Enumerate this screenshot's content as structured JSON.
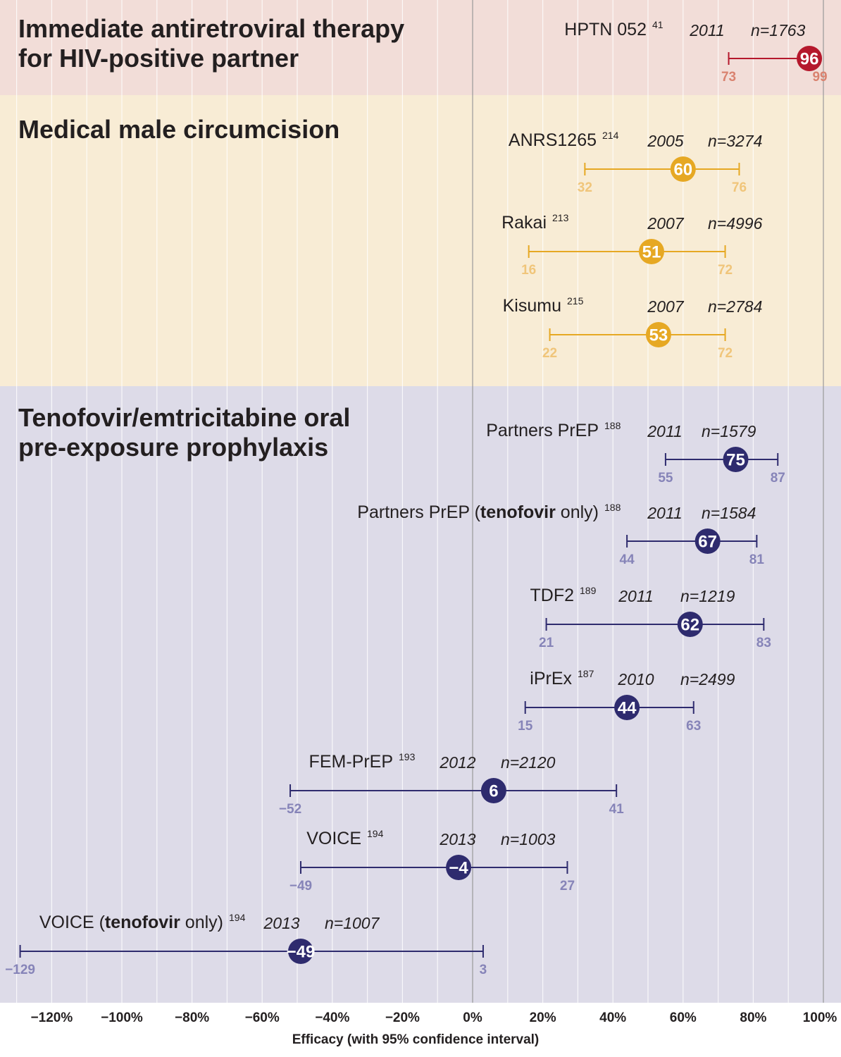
{
  "chart_data": {
    "type": "forest",
    "xlabel": "Efficacy (with 95% confidence interval)",
    "xlim": [
      -132,
      103
    ],
    "x_ticks": [
      {
        "value": -120,
        "label": "−120%"
      },
      {
        "value": -100,
        "label": "−100%"
      },
      {
        "value": -80,
        "label": "−80%"
      },
      {
        "value": -60,
        "label": "−60%"
      },
      {
        "value": -40,
        "label": "−40%"
      },
      {
        "value": -20,
        "label": "−20%"
      },
      {
        "value": 0,
        "label": "0%"
      },
      {
        "value": 20,
        "label": "20%"
      },
      {
        "value": 40,
        "label": "40%"
      },
      {
        "value": 60,
        "label": "60%"
      },
      {
        "value": 80,
        "label": "80%"
      },
      {
        "value": 100,
        "label": "100%"
      }
    ],
    "grid": true,
    "groups": [
      {
        "title_lines": [
          "Immediate antiretroviral therapy",
          "for HIV-positive partner"
        ],
        "color": "#b5182c",
        "band_color": "#f2ddd8",
        "ci_label_color": "#d9826f",
        "trials": [
          {
            "name_parts": [
              {
                "text": "HPTN 052",
                "bold": false
              }
            ],
            "ref": "41",
            "year": "2011",
            "n": "n=1763",
            "estimate": 96,
            "estimate_label": "96",
            "lower": 73,
            "lower_label": "73",
            "upper": 99,
            "upper_label": "99"
          }
        ]
      },
      {
        "title_lines": [
          "Medical male circumcision"
        ],
        "color": "#e6a823",
        "band_color": "#f8ecd5",
        "ci_label_color": "#f0c57a",
        "trials": [
          {
            "name_parts": [
              {
                "text": "ANRS1265",
                "bold": false
              }
            ],
            "ref": "214",
            "year": "2005",
            "n": "n=3274",
            "estimate": 60,
            "estimate_label": "60",
            "lower": 32,
            "lower_label": "32",
            "upper": 76,
            "upper_label": "76"
          },
          {
            "name_parts": [
              {
                "text": "Rakai",
                "bold": false
              }
            ],
            "ref": "213",
            "year": "2007",
            "n": "n=4996",
            "estimate": 51,
            "estimate_label": "51",
            "lower": 16,
            "lower_label": "16",
            "upper": 72,
            "upper_label": "72"
          },
          {
            "name_parts": [
              {
                "text": "Kisumu",
                "bold": false
              }
            ],
            "ref": "215",
            "year": "2007",
            "n": "n=2784",
            "estimate": 53,
            "estimate_label": "53",
            "lower": 22,
            "lower_label": "22",
            "upper": 72,
            "upper_label": "72"
          }
        ]
      },
      {
        "title_lines": [
          "Tenofovir/emtricitabine oral",
          "pre-exposure prophylaxis"
        ],
        "color": "#2e2b6e",
        "band_color": "#dddbe8",
        "ci_label_color": "#8684b8",
        "trials": [
          {
            "name_parts": [
              {
                "text": "Partners PrEP",
                "bold": false
              }
            ],
            "ref": "188",
            "year": "2011",
            "n": "n=1579",
            "estimate": 75,
            "estimate_label": "75",
            "lower": 55,
            "lower_label": "55",
            "upper": 87,
            "upper_label": "87"
          },
          {
            "name_parts": [
              {
                "text": "Partners PrEP (",
                "bold": false
              },
              {
                "text": "tenofovir",
                "bold": true
              },
              {
                "text": " only)",
                "bold": false
              }
            ],
            "ref": "188",
            "year": "2011",
            "n": "n=1584",
            "estimate": 67,
            "estimate_label": "67",
            "lower": 44,
            "lower_label": "44",
            "upper": 81,
            "upper_label": "81"
          },
          {
            "name_parts": [
              {
                "text": "TDF2",
                "bold": false
              }
            ],
            "ref": "189",
            "year": "2011",
            "n": "n=1219",
            "estimate": 62,
            "estimate_label": "62",
            "lower": 21,
            "lower_label": "21",
            "upper": 83,
            "upper_label": "83"
          },
          {
            "name_parts": [
              {
                "text": "iPrEx",
                "bold": false
              }
            ],
            "ref": "187",
            "year": "2010",
            "n": "n=2499",
            "estimate": 44,
            "estimate_label": "44",
            "lower": 15,
            "lower_label": "15",
            "upper": 63,
            "upper_label": "63"
          },
          {
            "name_parts": [
              {
                "text": "FEM-PrEP",
                "bold": false
              }
            ],
            "ref": "193",
            "year": "2012",
            "n": "n=2120",
            "estimate": 6,
            "estimate_label": "6",
            "lower": -52,
            "lower_label": "−52",
            "upper": 41,
            "upper_label": "41"
          },
          {
            "name_parts": [
              {
                "text": "VOICE",
                "bold": false
              }
            ],
            "ref": "194",
            "year": "2013",
            "n": "n=1003",
            "estimate": -4,
            "estimate_label": "−4",
            "lower": -49,
            "lower_label": "−49",
            "upper": 27,
            "upper_label": "27"
          },
          {
            "name_parts": [
              {
                "text": "VOICE (",
                "bold": false
              },
              {
                "text": "tenofovir",
                "bold": true
              },
              {
                "text": " only)",
                "bold": false
              }
            ],
            "ref": "194",
            "year": "2013",
            "n": "n=1007",
            "estimate": -49,
            "estimate_label": "−49",
            "lower": -129,
            "lower_label": "−129",
            "upper": 3,
            "upper_label": "3"
          }
        ]
      }
    ]
  }
}
